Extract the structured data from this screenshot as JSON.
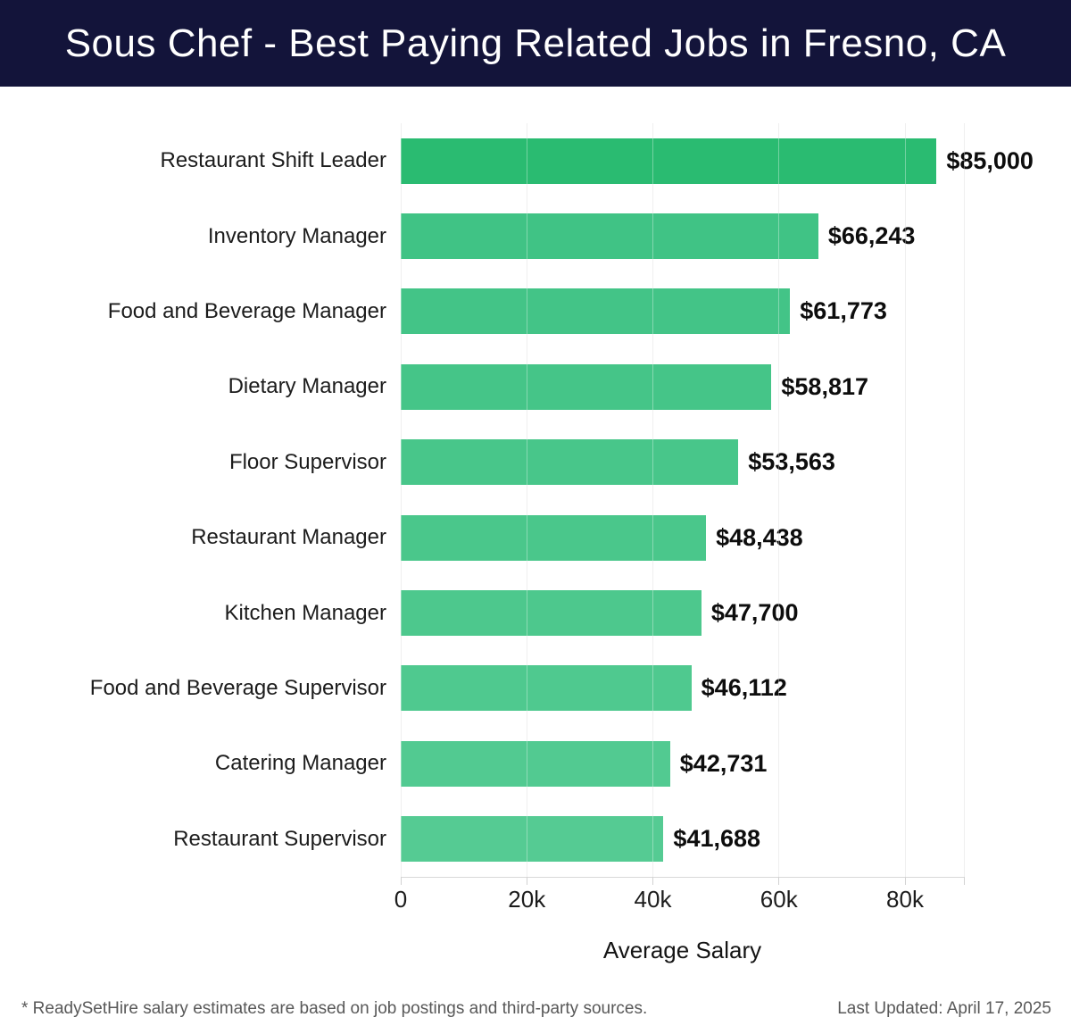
{
  "header": {
    "title": "Sous Chef - Best Paying Related Jobs in Fresno, CA"
  },
  "chart_data": {
    "type": "bar",
    "orientation": "horizontal",
    "title": "Sous Chef - Best Paying Related Jobs in Fresno, CA",
    "xlabel": "Average Salary",
    "ylabel": "",
    "categories": [
      "Restaurant Shift Leader",
      "Inventory Manager",
      "Food and Beverage Manager",
      "Dietary Manager",
      "Floor Supervisor",
      "Restaurant Manager",
      "Kitchen Manager",
      "Food and Beverage Supervisor",
      "Catering Manager",
      "Restaurant Supervisor"
    ],
    "values": [
      85000,
      66243,
      61773,
      58817,
      53563,
      48438,
      47700,
      46112,
      42731,
      41688
    ],
    "value_labels": [
      "$85,000",
      "$66,243",
      "$61,773",
      "$58,817",
      "$53,563",
      "$48,438",
      "$47,700",
      "$46,112",
      "$42,731",
      "$41,688"
    ],
    "x_ticks": [
      "0",
      "20k",
      "40k",
      "60k",
      "80k"
    ],
    "x_tick_values": [
      0,
      20000,
      40000,
      60000,
      80000
    ],
    "xlim": [
      0,
      89345
    ],
    "grid_values": [
      0,
      20000,
      40000,
      60000,
      80000,
      89345
    ],
    "grid": "vertical",
    "legend_position": "none",
    "bar_colors": [
      "#2abb71",
      "#40c385",
      "#43c487",
      "#45c588",
      "#48c68a",
      "#4ac78b",
      "#4dc88d",
      "#4fc98f",
      "#52ca91",
      "#55cb93"
    ]
  },
  "footer": {
    "note": "* ReadySetHire salary estimates are based on job postings and third-party sources.",
    "last_updated": "Last Updated: April 17, 2025"
  },
  "colors": {
    "header_bg": "#13143a",
    "header_text": "#ffffff",
    "gridline": "#e7e7e7",
    "axis_line": "#d8d8d8",
    "tick_mark": "#d2d2d2",
    "category_text": "#1c1c1c",
    "value_text": "#0d0d0d",
    "footer_text": "#585858",
    "highlight_bar": "#2abb71"
  }
}
